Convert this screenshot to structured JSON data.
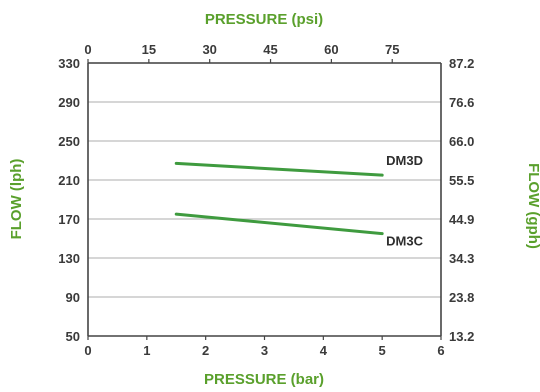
{
  "chart_data": {
    "type": "line",
    "axes": {
      "x_bottom": {
        "label": "PRESSURE (bar)",
        "range": [
          0,
          6
        ],
        "ticks": [
          "0",
          "1",
          "2",
          "3",
          "4",
          "5",
          "6"
        ]
      },
      "x_top": {
        "label": "PRESSURE (psi)",
        "ticks": [
          "0",
          "15",
          "30",
          "45",
          "60",
          "75"
        ],
        "tick_values": [
          0,
          15,
          30,
          45,
          60,
          75
        ]
      },
      "y_left": {
        "label": "FLOW (lph)",
        "range": [
          50,
          330
        ],
        "ticks": [
          "330",
          "290",
          "250",
          "210",
          "170",
          "130",
          "90",
          "50"
        ]
      },
      "y_right": {
        "label": "FLOW (gph)",
        "ticks": [
          "87.2",
          "76.6",
          "66.0",
          "55.5",
          "44.9",
          "34.3",
          "23.8",
          "13.2"
        ]
      }
    },
    "grid": "horizontal",
    "series": [
      {
        "name": "DM3D",
        "x": [
          1.5,
          5.0
        ],
        "y": [
          227,
          215
        ]
      },
      {
        "name": "DM3C",
        "x": [
          1.5,
          5.0
        ],
        "y": [
          175,
          155
        ]
      }
    ],
    "colors": {
      "line": "#3f9b3f",
      "title": "#5aa02c",
      "text": "#3a3a3a",
      "grid": "#bdbdbd"
    }
  }
}
